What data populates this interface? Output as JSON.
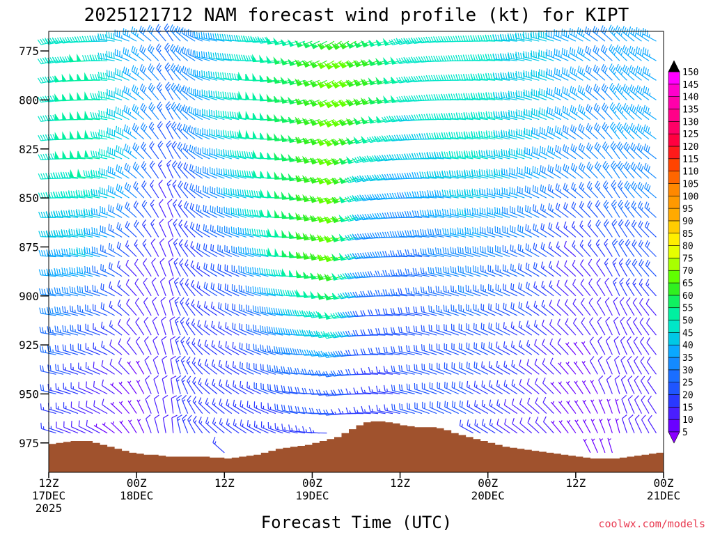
{
  "chart_data": {
    "type": "wind-barb-time-height",
    "title": "2025121712 NAM forecast wind profile (kt) for KIPT",
    "xlabel": "Forecast Time (UTC)",
    "ylabel": "",
    "credit": "coolwx.com/models",
    "y_ticks": [
      "775",
      "800",
      "825",
      "850",
      "875",
      "900",
      "925",
      "950",
      "975"
    ],
    "y_tick_values": [
      775,
      800,
      825,
      850,
      875,
      900,
      925,
      950,
      975
    ],
    "ylim": [
      765,
      990
    ],
    "xlim_hours": [
      0,
      84
    ],
    "x_ticks": [
      {
        "hour": 0,
        "line1": "12Z",
        "line2": "17DEC",
        "line3": "2025"
      },
      {
        "hour": 12,
        "line1": "00Z",
        "line2": "18DEC",
        "line3": ""
      },
      {
        "hour": 24,
        "line1": "12Z",
        "line2": "",
        "line3": ""
      },
      {
        "hour": 36,
        "line1": "00Z",
        "line2": "19DEC",
        "line3": ""
      },
      {
        "hour": 48,
        "line1": "12Z",
        "line2": "",
        "line3": ""
      },
      {
        "hour": 60,
        "line1": "00Z",
        "line2": "20DEC",
        "line3": ""
      },
      {
        "hour": 72,
        "line1": "12Z",
        "line2": "",
        "line3": ""
      },
      {
        "hour": 84,
        "line1": "00Z",
        "line2": "21DEC",
        "line3": ""
      }
    ],
    "colorbar": {
      "levels": [
        "5",
        "10",
        "15",
        "20",
        "25",
        "30",
        "35",
        "40",
        "45",
        "50",
        "55",
        "60",
        "65",
        "70",
        "75",
        "80",
        "85",
        "90",
        "95",
        "100",
        "105",
        "110",
        "115",
        "120",
        "125",
        "130",
        "135",
        "140",
        "145",
        "150"
      ],
      "colors": [
        "#8a00ff",
        "#6a00ff",
        "#4a1eff",
        "#2a38ff",
        "#1f55ff",
        "#1a6eff",
        "#148aff",
        "#0aa8ff",
        "#00c8e6",
        "#00e6c8",
        "#00f0a0",
        "#10f060",
        "#30f020",
        "#60ff00",
        "#a8ff00",
        "#e6ff00",
        "#ffee00",
        "#ffcc00",
        "#ffaa00",
        "#ff9900",
        "#ff8800",
        "#ff6600",
        "#ff4400",
        "#ff1a1a",
        "#ff0040",
        "#ff0066",
        "#ff0088",
        "#ff00aa",
        "#ff00cc",
        "#ff00ff"
      ]
    },
    "terrain_color": "#a0522d",
    "terrain_surface_mb": [
      {
        "hour": 0,
        "p": 975.5
      },
      {
        "hour": 1,
        "p": 975
      },
      {
        "hour": 2,
        "p": 974.5
      },
      {
        "hour": 3,
        "p": 974
      },
      {
        "hour": 4,
        "p": 974
      },
      {
        "hour": 5,
        "p": 974
      },
      {
        "hour": 6,
        "p": 975
      },
      {
        "hour": 7,
        "p": 976
      },
      {
        "hour": 8,
        "p": 977
      },
      {
        "hour": 9,
        "p": 978
      },
      {
        "hour": 10,
        "p": 979
      },
      {
        "hour": 11,
        "p": 980
      },
      {
        "hour": 12,
        "p": 980.5
      },
      {
        "hour": 13,
        "p": 981
      },
      {
        "hour": 14,
        "p": 981
      },
      {
        "hour": 15,
        "p": 981.5
      },
      {
        "hour": 16,
        "p": 982
      },
      {
        "hour": 17,
        "p": 982
      },
      {
        "hour": 18,
        "p": 982
      },
      {
        "hour": 19,
        "p": 982
      },
      {
        "hour": 20,
        "p": 982
      },
      {
        "hour": 21,
        "p": 982
      },
      {
        "hour": 22,
        "p": 982.5
      },
      {
        "hour": 23,
        "p": 982.5
      },
      {
        "hour": 24,
        "p": 983
      },
      {
        "hour": 25,
        "p": 982.5
      },
      {
        "hour": 26,
        "p": 982
      },
      {
        "hour": 27,
        "p": 981.5
      },
      {
        "hour": 28,
        "p": 981
      },
      {
        "hour": 29,
        "p": 980
      },
      {
        "hour": 30,
        "p": 979
      },
      {
        "hour": 31,
        "p": 978
      },
      {
        "hour": 32,
        "p": 977.5
      },
      {
        "hour": 33,
        "p": 977
      },
      {
        "hour": 34,
        "p": 976.5
      },
      {
        "hour": 35,
        "p": 976
      },
      {
        "hour": 36,
        "p": 975
      },
      {
        "hour": 37,
        "p": 974
      },
      {
        "hour": 38,
        "p": 973
      },
      {
        "hour": 39,
        "p": 972
      },
      {
        "hour": 40,
        "p": 970
      },
      {
        "hour": 41,
        "p": 968
      },
      {
        "hour": 42,
        "p": 966
      },
      {
        "hour": 43,
        "p": 964.5
      },
      {
        "hour": 44,
        "p": 964
      },
      {
        "hour": 45,
        "p": 964
      },
      {
        "hour": 46,
        "p": 964.5
      },
      {
        "hour": 47,
        "p": 965
      },
      {
        "hour": 48,
        "p": 966
      },
      {
        "hour": 49,
        "p": 966.5
      },
      {
        "hour": 50,
        "p": 967
      },
      {
        "hour": 51,
        "p": 967
      },
      {
        "hour": 52,
        "p": 967
      },
      {
        "hour": 53,
        "p": 967.5
      },
      {
        "hour": 54,
        "p": 968.5
      },
      {
        "hour": 55,
        "p": 970
      },
      {
        "hour": 56,
        "p": 971
      },
      {
        "hour": 57,
        "p": 972
      },
      {
        "hour": 58,
        "p": 973
      },
      {
        "hour": 59,
        "p": 974
      },
      {
        "hour": 60,
        "p": 975
      },
      {
        "hour": 61,
        "p": 976
      },
      {
        "hour": 62,
        "p": 977
      },
      {
        "hour": 63,
        "p": 977.5
      },
      {
        "hour": 64,
        "p": 978
      },
      {
        "hour": 65,
        "p": 978.5
      },
      {
        "hour": 66,
        "p": 979
      },
      {
        "hour": 67,
        "p": 979.5
      },
      {
        "hour": 68,
        "p": 980
      },
      {
        "hour": 69,
        "p": 980.5
      },
      {
        "hour": 70,
        "p": 981
      },
      {
        "hour": 71,
        "p": 981.5
      },
      {
        "hour": 72,
        "p": 982
      },
      {
        "hour": 73,
        "p": 982.5
      },
      {
        "hour": 74,
        "p": 983
      },
      {
        "hour": 75,
        "p": 983
      },
      {
        "hour": 76,
        "p": 983
      },
      {
        "hour": 77,
        "p": 983
      },
      {
        "hour": 78,
        "p": 982.5
      },
      {
        "hour": 79,
        "p": 982
      },
      {
        "hour": 80,
        "p": 981.5
      },
      {
        "hour": 81,
        "p": 981
      },
      {
        "hour": 82,
        "p": 980.5
      },
      {
        "hour": 83,
        "p": 980
      },
      {
        "hour": 84,
        "p": 979.5
      }
    ],
    "barb_interval_hours": 1,
    "barb_levels_mb": [
      770,
      780,
      790,
      800,
      810,
      820,
      830,
      840,
      850,
      860,
      870,
      880,
      890,
      900,
      910,
      920,
      930,
      940,
      950,
      960,
      970,
      980
    ],
    "wind_speed_kt_keyframes": [
      {
        "hour": 0,
        "speeds": [
          45,
          45,
          45,
          45,
          45,
          45,
          45,
          45,
          42,
          40,
          38,
          35,
          33,
          32,
          30,
          28,
          25,
          22,
          20,
          18,
          15,
          12
        ]
      },
      {
        "hour": 6,
        "speeds": [
          45,
          48,
          50,
          50,
          50,
          50,
          50,
          48,
          45,
          42,
          40,
          38,
          35,
          30,
          25,
          22,
          18,
          15,
          12,
          10,
          8,
          6
        ]
      },
      {
        "hour": 12,
        "speeds": [
          35,
          35,
          35,
          35,
          35,
          35,
          35,
          32,
          30,
          25,
          20,
          15,
          12,
          10,
          10,
          8,
          8,
          6,
          5,
          5,
          5,
          5
        ]
      },
      {
        "hour": 16,
        "speeds": [
          25,
          25,
          25,
          25,
          25,
          20,
          18,
          15,
          12,
          10,
          10,
          10,
          10,
          10,
          10,
          10,
          10,
          10,
          10,
          10,
          10,
          10
        ]
      },
      {
        "hour": 20,
        "speeds": [
          30,
          30,
          30,
          30,
          30,
          28,
          25,
          22,
          20,
          18,
          15,
          15,
          15,
          15,
          15,
          15,
          15,
          15,
          15,
          15,
          15,
          15
        ]
      },
      {
        "hour": 26,
        "speeds": [
          40,
          42,
          45,
          45,
          45,
          45,
          42,
          40,
          38,
          35,
          30,
          25,
          22,
          20,
          18,
          15,
          15,
          15,
          15,
          15,
          15,
          15
        ]
      },
      {
        "hour": 34,
        "speeds": [
          50,
          55,
          55,
          55,
          55,
          55,
          55,
          55,
          55,
          55,
          55,
          55,
          50,
          45,
          40,
          35,
          30,
          25,
          20,
          18,
          15,
          15
        ]
      },
      {
        "hour": 40,
        "speeds": [
          60,
          65,
          65,
          65,
          65,
          65,
          65,
          65,
          65,
          65,
          65,
          65,
          60,
          55,
          50,
          45,
          35,
          25,
          20,
          18,
          15,
          15
        ]
      },
      {
        "hour": 44,
        "speeds": [
          55,
          60,
          60,
          60,
          55,
          50,
          45,
          40,
          38,
          35,
          30,
          30,
          28,
          25,
          22,
          20,
          18,
          15,
          15,
          15,
          15,
          15
        ]
      },
      {
        "hour": 50,
        "speeds": [
          45,
          45,
          45,
          45,
          42,
          40,
          38,
          35,
          32,
          30,
          28,
          25,
          25,
          22,
          20,
          20,
          20,
          18,
          18,
          18,
          18,
          18
        ]
      },
      {
        "hour": 58,
        "speeds": [
          45,
          45,
          45,
          45,
          45,
          45,
          45,
          42,
          40,
          38,
          35,
          32,
          30,
          28,
          25,
          22,
          20,
          20,
          18,
          18,
          15,
          15
        ]
      },
      {
        "hour": 66,
        "speeds": [
          40,
          40,
          40,
          40,
          40,
          40,
          38,
          35,
          32,
          30,
          28,
          25,
          22,
          20,
          18,
          15,
          15,
          12,
          12,
          10,
          10,
          10
        ]
      },
      {
        "hour": 72,
        "speeds": [
          35,
          35,
          35,
          35,
          35,
          32,
          30,
          28,
          25,
          20,
          15,
          12,
          10,
          10,
          8,
          8,
          6,
          6,
          5,
          5,
          5,
          5
        ]
      },
      {
        "hour": 76,
        "speeds": [
          30,
          30,
          30,
          30,
          30,
          30,
          30,
          28,
          25,
          22,
          18,
          15,
          12,
          10,
          10,
          8,
          8,
          8,
          8,
          6,
          6,
          6
        ]
      },
      {
        "hour": 80,
        "speeds": [
          35,
          35,
          35,
          35,
          35,
          35,
          32,
          30,
          28,
          25,
          22,
          20,
          18,
          15,
          12,
          10,
          10,
          10,
          8,
          8,
          8,
          8
        ]
      },
      {
        "hour": 84,
        "speeds": [
          35,
          35,
          35,
          35,
          35,
          35,
          32,
          30,
          28,
          25,
          22,
          20,
          18,
          15,
          12,
          10,
          10,
          8,
          8,
          8,
          8,
          8
        ]
      }
    ],
    "wind_dir_deg_keyframes": [
      {
        "hour": 0,
        "dir": 270
      },
      {
        "hour": 8,
        "dir": 285
      },
      {
        "hour": 13,
        "dir": 320
      },
      {
        "hour": 17,
        "dir": 340
      },
      {
        "hour": 22,
        "dir": 300
      },
      {
        "hour": 30,
        "dir": 280
      },
      {
        "hour": 40,
        "dir": 250
      },
      {
        "hour": 46,
        "dir": 265
      },
      {
        "hour": 54,
        "dir": 280
      },
      {
        "hour": 64,
        "dir": 290
      },
      {
        "hour": 72,
        "dir": 310
      },
      {
        "hour": 78,
        "dir": 330
      },
      {
        "hour": 84,
        "dir": 310
      }
    ]
  }
}
